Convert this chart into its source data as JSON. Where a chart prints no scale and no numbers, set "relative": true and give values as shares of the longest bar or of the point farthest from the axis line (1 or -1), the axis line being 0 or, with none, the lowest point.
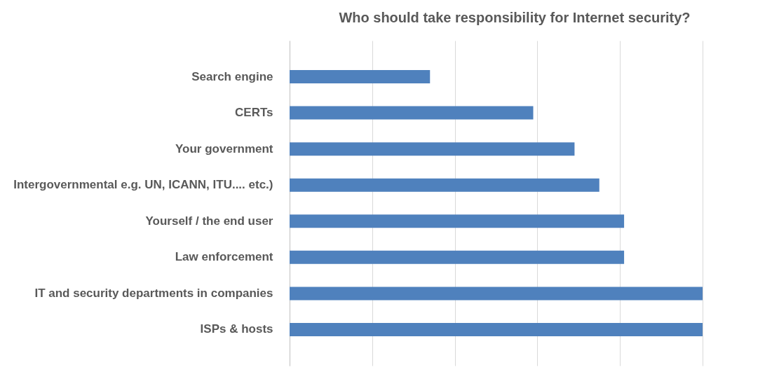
{
  "chart_data": {
    "type": "bar",
    "orientation": "horizontal",
    "relative": true,
    "title": "Who should take responsibility for Internet security?",
    "categories": [
      "Search engine",
      "CERTs",
      "Your government",
      "Intergovernmental e.g. UN, ICANN, ITU.... etc.)",
      "Yourself / the end user",
      "Law enforcement",
      "IT and security departments in companies",
      "ISPs & hosts"
    ],
    "values": [
      0.34,
      0.59,
      0.69,
      0.75,
      0.81,
      0.81,
      1,
      1
    ],
    "color": "#4f81bd",
    "grid": "x"
  }
}
